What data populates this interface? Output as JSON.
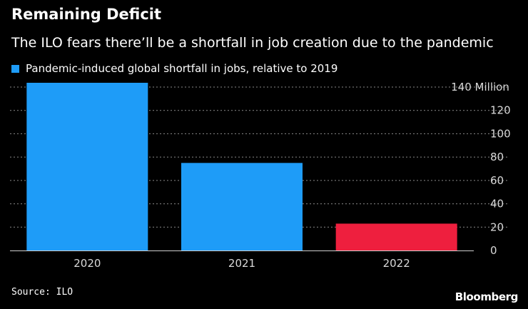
{
  "colors": {
    "background": "#000000",
    "series": "#1e9cf8",
    "highlight": "#ee1f3e",
    "text": "#ffffff",
    "grid": "#8a8a8a",
    "axis_text": "#d9d9d9"
  },
  "chart_data": {
    "type": "bar",
    "title": "Remaining Deficit",
    "subtitle": "The ILO fears there’ll be a shortfall in job creation due to the pandemic",
    "legend": [
      {
        "name": "Pandemic-induced global shortfall in jobs, relative to 2019",
        "color": "#1e9cf8"
      }
    ],
    "categories": [
      "2020",
      "2021",
      "2022"
    ],
    "series": [
      {
        "name": "Pandemic-induced global shortfall in jobs, relative to 2019",
        "values": [
          144,
          75,
          23
        ]
      }
    ],
    "bar_colors": [
      "#1e9cf8",
      "#1e9cf8",
      "#ee1f3e"
    ],
    "ylim": [
      0,
      140
    ],
    "yticks": [
      0,
      20,
      40,
      60,
      80,
      100,
      120,
      140
    ],
    "ytick_labels": [
      "0",
      "20",
      "40",
      "60",
      "80",
      "100",
      "120",
      "140 Million"
    ],
    "grid": true,
    "xlabel": "",
    "ylabel": "",
    "source": "Source: ILO",
    "brand": "Bloomberg"
  }
}
